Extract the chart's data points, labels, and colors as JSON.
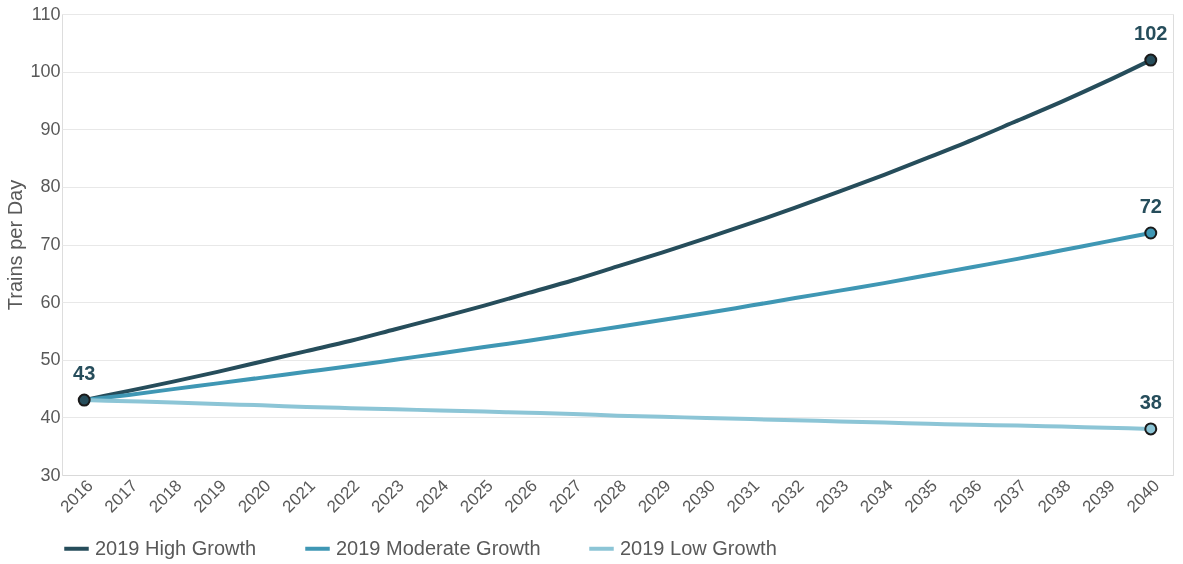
{
  "chart_data": {
    "type": "line",
    "ylabel": "Trains per Day",
    "categories": [
      "2016",
      "2017",
      "2018",
      "2019",
      "2020",
      "2021",
      "2022",
      "2023",
      "2024",
      "2025",
      "2026",
      "2027",
      "2028",
      "2029",
      "2030",
      "2031",
      "2032",
      "2033",
      "2034",
      "2035",
      "2036",
      "2037",
      "2038",
      "2039",
      "2040"
    ],
    "series": [
      {
        "name": "2019 High Growth",
        "color": "#264d5b",
        "values": [
          43,
          44.6,
          46.2,
          47.9,
          49.7,
          51.5,
          53.3,
          55.3,
          57.3,
          59.4,
          61.6,
          63.8,
          66.2,
          68.6,
          71.1,
          73.7,
          76.4,
          79.2,
          82.1,
          85.1,
          88.2,
          91.5,
          94.8,
          98.3,
          102
        ],
        "value_labels": [
          "43",
          null,
          null,
          null,
          null,
          null,
          null,
          null,
          null,
          null,
          null,
          null,
          null,
          null,
          null,
          null,
          null,
          null,
          null,
          null,
          null,
          null,
          null,
          null,
          "102"
        ]
      },
      {
        "name": "2019 Moderate Growth",
        "color": "#3f97b4",
        "values": [
          43,
          43.9,
          44.9,
          45.9,
          46.9,
          47.9,
          48.9,
          50.0,
          51.1,
          52.2,
          53.3,
          54.5,
          55.7,
          56.9,
          58.1,
          59.4,
          60.7,
          62.0,
          63.3,
          64.7,
          66.1,
          67.5,
          69.0,
          70.5,
          72
        ],
        "value_labels": [
          null,
          null,
          null,
          null,
          null,
          null,
          null,
          null,
          null,
          null,
          null,
          null,
          null,
          null,
          null,
          null,
          null,
          null,
          null,
          null,
          null,
          null,
          null,
          null,
          "72"
        ]
      },
      {
        "name": "2019 Low Growth",
        "color": "#8cc5d6",
        "values": [
          43,
          42.8,
          42.6,
          42.3,
          42.1,
          41.8,
          41.6,
          41.4,
          41.2,
          41.0,
          40.8,
          40.6,
          40.3,
          40.1,
          39.9,
          39.7,
          39.5,
          39.3,
          39.1,
          38.9,
          38.7,
          38.6,
          38.4,
          38.2,
          38.0
        ],
        "value_labels": [
          null,
          null,
          null,
          null,
          null,
          null,
          null,
          null,
          null,
          null,
          null,
          null,
          null,
          null,
          null,
          null,
          null,
          null,
          null,
          null,
          null,
          null,
          null,
          null,
          "38"
        ]
      }
    ],
    "ylim": [
      30,
      110
    ],
    "yticks": [
      30,
      40,
      50,
      60,
      70,
      80,
      90,
      100,
      110
    ],
    "grid": "y",
    "legend": "bottom",
    "line_style": "solid"
  }
}
